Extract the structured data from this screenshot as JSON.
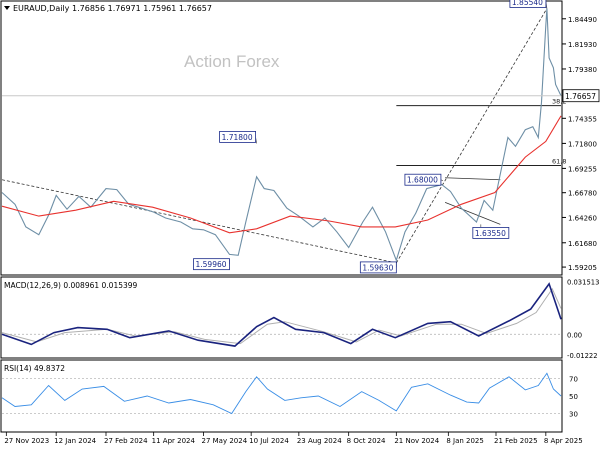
{
  "header": {
    "symbol_line": "EURAUD,Daily",
    "ohlc": "1.76856 1.76971 1.75961 1.76657"
  },
  "watermark": "Action Forex",
  "colors": {
    "candle": "#6e8fa6",
    "sma": "#e8322e",
    "macd": "#1a237e",
    "signal": "#b0b0b0",
    "rsi": "#3a8ee6",
    "grid": "#000000",
    "label_border": "#1a2a8a"
  },
  "price_axis": {
    "ticks": [
      "1.84490",
      "1.81930",
      "1.79380",
      "1.74355",
      "1.71800",
      "1.69255",
      "1.66780",
      "1.64260",
      "1.61680",
      "1.59205"
    ],
    "current_label": "1.76657",
    "min": 1.585,
    "max": 1.862
  },
  "macd_panel": {
    "title": "MACD(12,26,9) 0.008961 0.015399",
    "ticks": [
      "0.031513",
      "0.00",
      "-0.01222"
    ],
    "min": -0.0135,
    "max": 0.0335
  },
  "rsi_panel": {
    "title": "RSI(14) 49.8372",
    "ticks": [
      "70",
      "50",
      "30"
    ],
    "levels": [
      70,
      30
    ]
  },
  "x_axis_labels": [
    "27 Nov 2023",
    "12 Jan 2024",
    "27 Feb 2024",
    "11 Apr 2024",
    "27 May 2024",
    "10 Jul 2024",
    "23 Aug 2024",
    "8 Oct 2024",
    "21 Nov 2024",
    "8 Jan 2025",
    "21 Feb 2025",
    "8 Apr 2025"
  ],
  "annotations": {
    "price_labels": [
      "1.85540",
      "1.71800",
      "1.68000",
      "1.63550",
      "1.59960",
      "1.59630"
    ],
    "fib_labels": [
      "38.2",
      "61.8"
    ]
  },
  "chart_data": {
    "type": "line",
    "title": "EURAUD,Daily",
    "x_range": [
      "2023-11-23",
      "2025-04-22"
    ],
    "ohlc_last": {
      "open": 1.76856,
      "high": 1.76971,
      "low": 1.75961,
      "close": 1.76657
    },
    "price_ylim": [
      1.585,
      1.862
    ],
    "series": [
      {
        "key": "price",
        "points": [
          [
            "2023-11-23",
            1.668
          ],
          [
            "2023-12-05",
            1.656
          ],
          [
            "2023-12-15",
            1.633
          ],
          [
            "2023-12-27",
            1.625
          ],
          [
            "2024-01-05",
            1.645
          ],
          [
            "2024-01-12",
            1.665
          ],
          [
            "2024-01-22",
            1.651
          ],
          [
            "2024-02-02",
            1.664
          ],
          [
            "2024-02-13",
            1.653
          ],
          [
            "2024-02-27",
            1.672
          ],
          [
            "2024-03-08",
            1.671
          ],
          [
            "2024-03-19",
            1.656
          ],
          [
            "2024-03-28",
            1.653
          ],
          [
            "2024-04-11",
            1.648
          ],
          [
            "2024-04-22",
            1.642
          ],
          [
            "2024-05-06",
            1.638
          ],
          [
            "2024-05-17",
            1.631
          ],
          [
            "2024-05-27",
            1.63
          ],
          [
            "2024-06-07",
            1.625
          ],
          [
            "2024-06-20",
            1.605
          ],
          [
            "2024-06-28",
            1.604
          ],
          [
            "2024-07-05",
            1.638
          ],
          [
            "2024-07-10",
            1.661
          ],
          [
            "2024-07-15",
            1.684
          ],
          [
            "2024-07-22",
            1.672
          ],
          [
            "2024-07-31",
            1.67
          ],
          [
            "2024-08-12",
            1.652
          ],
          [
            "2024-08-23",
            1.644
          ],
          [
            "2024-09-05",
            1.633
          ],
          [
            "2024-09-16",
            1.642
          ],
          [
            "2024-09-27",
            1.628
          ],
          [
            "2024-10-08",
            1.612
          ],
          [
            "2024-10-21",
            1.638
          ],
          [
            "2024-10-30",
            1.653
          ],
          [
            "2024-11-11",
            1.628
          ],
          [
            "2024-11-21",
            1.599
          ],
          [
            "2024-11-29",
            1.628
          ],
          [
            "2024-12-09",
            1.647
          ],
          [
            "2024-12-19",
            1.672
          ],
          [
            "2025-01-02",
            1.676
          ],
          [
            "2025-01-10",
            1.669
          ],
          [
            "2025-01-20",
            1.652
          ],
          [
            "2025-02-03",
            1.638
          ],
          [
            "2025-02-10",
            1.66
          ],
          [
            "2025-02-18",
            1.65
          ],
          [
            "2025-02-24",
            1.682
          ],
          [
            "2025-03-04",
            1.724
          ],
          [
            "2025-03-11",
            1.715
          ],
          [
            "2025-03-20",
            1.732
          ],
          [
            "2025-03-27",
            1.735
          ],
          [
            "2025-04-01",
            1.724
          ],
          [
            "2025-04-04",
            1.76
          ],
          [
            "2025-04-08",
            1.838
          ],
          [
            "2025-04-09",
            1.8554
          ],
          [
            "2025-04-11",
            1.805
          ],
          [
            "2025-04-15",
            1.795
          ],
          [
            "2025-04-17",
            1.778
          ],
          [
            "2025-04-22",
            1.7666
          ]
        ]
      },
      {
        "key": "sma",
        "points": [
          [
            "2023-11-23",
            1.654
          ],
          [
            "2023-12-27",
            1.644
          ],
          [
            "2024-01-30",
            1.65
          ],
          [
            "2024-03-05",
            1.659
          ],
          [
            "2024-04-10",
            1.653
          ],
          [
            "2024-05-15",
            1.642
          ],
          [
            "2024-06-20",
            1.627
          ],
          [
            "2024-07-15",
            1.631
          ],
          [
            "2024-08-15",
            1.644
          ],
          [
            "2024-09-20",
            1.639
          ],
          [
            "2024-10-20",
            1.633
          ],
          [
            "2024-11-20",
            1.633
          ],
          [
            "2024-12-20",
            1.64
          ],
          [
            "2025-01-20",
            1.656
          ],
          [
            "2025-02-20",
            1.668
          ],
          [
            "2025-03-20",
            1.704
          ],
          [
            "2025-04-08",
            1.72
          ],
          [
            "2025-04-22",
            1.746
          ]
        ]
      },
      {
        "key": "macd",
        "points": [
          [
            "2023-11-23",
            0.0
          ],
          [
            "2023-12-20",
            -0.006
          ],
          [
            "2024-01-10",
            0.001
          ],
          [
            "2024-02-01",
            0.004
          ],
          [
            "2024-02-28",
            0.003
          ],
          [
            "2024-03-20",
            -0.002
          ],
          [
            "2024-04-25",
            0.002
          ],
          [
            "2024-05-22",
            -0.0035
          ],
          [
            "2024-06-25",
            -0.007
          ],
          [
            "2024-07-15",
            0.0045
          ],
          [
            "2024-07-31",
            0.01
          ],
          [
            "2024-08-20",
            0.003
          ],
          [
            "2024-09-15",
            0.001
          ],
          [
            "2024-10-10",
            -0.0055
          ],
          [
            "2024-10-30",
            0.003
          ],
          [
            "2024-11-20",
            -0.002
          ],
          [
            "2024-12-20",
            0.0065
          ],
          [
            "2025-01-10",
            0.0075
          ],
          [
            "2025-02-05",
            -0.001
          ],
          [
            "2025-03-05",
            0.008
          ],
          [
            "2025-03-25",
            0.015
          ],
          [
            "2025-04-11",
            0.03
          ],
          [
            "2025-04-22",
            0.009
          ]
        ]
      },
      {
        "key": "signal",
        "points": [
          [
            "2023-11-23",
            0.001
          ],
          [
            "2023-12-25",
            -0.0045
          ],
          [
            "2024-01-20",
            0.001
          ],
          [
            "2024-02-28",
            0.003
          ],
          [
            "2024-03-25",
            -0.001
          ],
          [
            "2024-04-30",
            0.0015
          ],
          [
            "2024-05-28",
            -0.003
          ],
          [
            "2024-06-30",
            -0.0055
          ],
          [
            "2024-07-25",
            0.006
          ],
          [
            "2024-08-10",
            0.0075
          ],
          [
            "2024-09-15",
            0.0015
          ],
          [
            "2024-10-15",
            -0.0045
          ],
          [
            "2024-11-05",
            0.0025
          ],
          [
            "2024-11-25",
            -0.001
          ],
          [
            "2024-12-28",
            0.006
          ],
          [
            "2025-01-20",
            0.006
          ],
          [
            "2025-02-12",
            0.0005
          ],
          [
            "2025-03-12",
            0.0065
          ],
          [
            "2025-03-30",
            0.013
          ],
          [
            "2025-04-14",
            0.027
          ],
          [
            "2025-04-22",
            0.0154
          ]
        ]
      },
      {
        "key": "rsi",
        "points": [
          [
            "2023-11-23",
            48
          ],
          [
            "2023-12-05",
            38
          ],
          [
            "2023-12-20",
            40
          ],
          [
            "2024-01-05",
            62
          ],
          [
            "2024-01-20",
            45
          ],
          [
            "2024-02-05",
            58
          ],
          [
            "2024-02-25",
            61
          ],
          [
            "2024-03-15",
            44
          ],
          [
            "2024-04-05",
            50
          ],
          [
            "2024-04-25",
            42
          ],
          [
            "2024-05-15",
            46
          ],
          [
            "2024-06-05",
            40
          ],
          [
            "2024-06-22",
            30
          ],
          [
            "2024-07-05",
            55
          ],
          [
            "2024-07-15",
            72
          ],
          [
            "2024-07-25",
            58
          ],
          [
            "2024-08-10",
            45
          ],
          [
            "2024-08-25",
            48
          ],
          [
            "2024-09-10",
            50
          ],
          [
            "2024-09-30",
            38
          ],
          [
            "2024-10-20",
            55
          ],
          [
            "2024-11-05",
            45
          ],
          [
            "2024-11-21",
            33
          ],
          [
            "2024-12-05",
            60
          ],
          [
            "2024-12-20",
            64
          ],
          [
            "2025-01-10",
            51
          ],
          [
            "2025-01-25",
            43
          ],
          [
            "2025-02-05",
            42
          ],
          [
            "2025-02-15",
            59
          ],
          [
            "2025-03-05",
            72
          ],
          [
            "2025-03-20",
            57
          ],
          [
            "2025-04-01",
            62
          ],
          [
            "2025-04-09",
            76
          ],
          [
            "2025-04-15",
            58
          ],
          [
            "2025-04-22",
            50
          ]
        ]
      }
    ],
    "trend_lines": [
      {
        "from": [
          "2023-11-23",
          1.681
        ],
        "to": [
          "2024-11-21",
          1.5963
        ],
        "style": "dashed"
      },
      {
        "from": [
          "2024-11-21",
          1.5963
        ],
        "to": [
          "2025-04-09",
          1.8554
        ],
        "style": "dashed"
      },
      {
        "from": [
          "2025-01-05",
          1.683
        ],
        "to": [
          "2025-02-25",
          1.681
        ],
        "style": "solid"
      },
      {
        "from": [
          "2025-01-05",
          1.658
        ],
        "to": [
          "2025-02-25",
          1.6355
        ],
        "style": "solid"
      }
    ],
    "fib_levels": [
      {
        "label": "38.2",
        "value": 1.7565,
        "from": "2024-11-21"
      },
      {
        "label": "61.8",
        "value": 1.6955,
        "from": "2024-11-21"
      }
    ],
    "markers": [
      {
        "label": "1.85540",
        "date": "2025-04-09",
        "value": 1.8554
      },
      {
        "label": "1.71800",
        "date": "2024-07-15",
        "value": 1.718
      },
      {
        "label": "1.68000",
        "date": "2025-01-03",
        "value": 1.68
      },
      {
        "label": "1.63550",
        "date": "2025-02-07",
        "value": 1.6355
      },
      {
        "label": "1.59960",
        "date": "2024-06-20",
        "value": 1.5996
      },
      {
        "label": "1.59630",
        "date": "2024-11-21",
        "value": 1.5963
      }
    ]
  }
}
